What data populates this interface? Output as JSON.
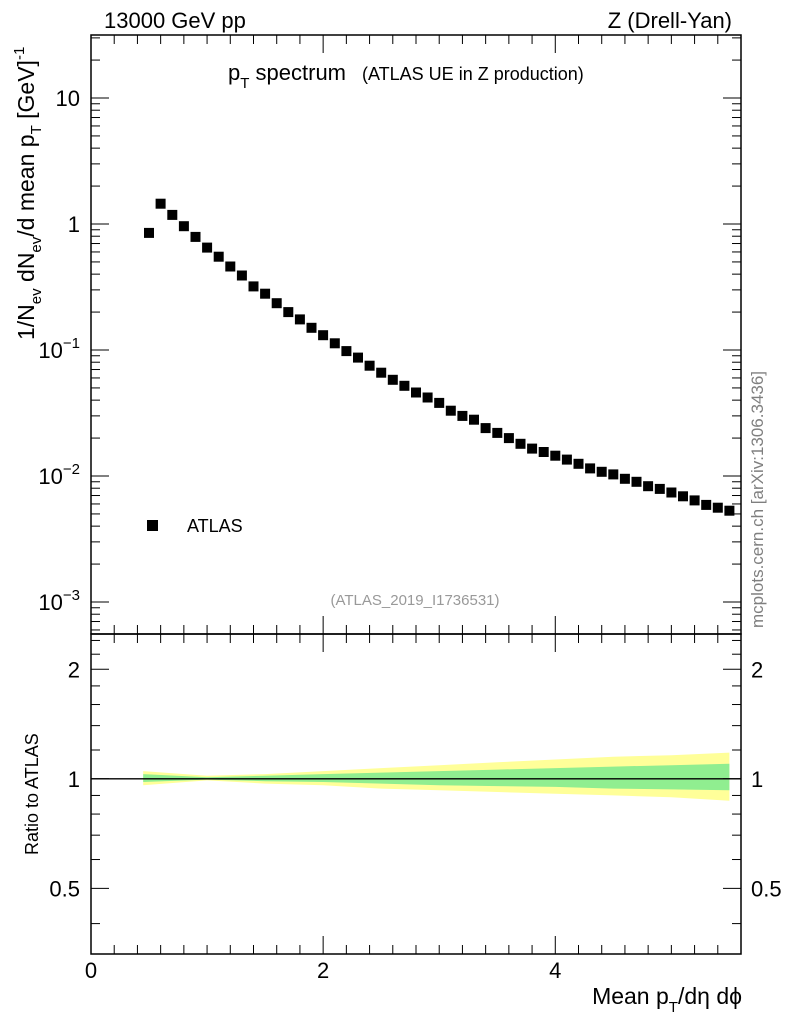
{
  "header": {
    "left": "13000 GeV pp",
    "right": "Z (Drell-Yan)"
  },
  "side_label": "mcplots.cern.ch [arXiv:1306.3436]",
  "chart_data": [
    {
      "panel": "main",
      "type": "scatter",
      "title_main": "p",
      "title_sub": "T",
      "title_rest": " spectrum",
      "title_note": "(ATLAS UE in Z production)",
      "watermark": "(ATLAS_2019_I1736531)",
      "legend": {
        "label": "ATLAS",
        "position": "left"
      },
      "xlim": [
        0,
        5.6
      ],
      "ylim": [
        0.0005,
        30
      ],
      "yscale": "log",
      "ylabel_parts": [
        "1/N",
        "ev",
        " dN",
        "ev",
        "/d mean p",
        "T",
        " [GeV]",
        "-1"
      ],
      "yticks": [
        {
          "value": 10,
          "base": "10",
          "exp": ""
        },
        {
          "value": 1,
          "base": "1",
          "exp": ""
        },
        {
          "value": 0.1,
          "base": "10",
          "exp": "−1"
        },
        {
          "value": 0.01,
          "base": "10",
          "exp": "−2"
        },
        {
          "value": 0.001,
          "base": "10",
          "exp": "−3"
        }
      ],
      "series": [
        {
          "name": "ATLAS",
          "x": [
            0.5,
            0.6,
            0.7,
            0.8,
            0.9,
            1.0,
            1.1,
            1.2,
            1.3,
            1.4,
            1.5,
            1.6,
            1.7,
            1.8,
            1.9,
            2.0,
            2.1,
            2.2,
            2.3,
            2.4,
            2.5,
            2.6,
            2.7,
            2.8,
            2.9,
            3.0,
            3.1,
            3.2,
            3.3,
            3.4,
            3.5,
            3.6,
            3.7,
            3.8,
            3.9,
            4.0,
            4.1,
            4.2,
            4.3,
            4.4,
            4.5,
            4.6,
            4.7,
            4.8,
            4.9,
            5.0,
            5.1,
            5.2,
            5.3,
            5.4,
            5.5
          ],
          "y": [
            0.85,
            1.45,
            1.18,
            0.96,
            0.79,
            0.65,
            0.55,
            0.46,
            0.39,
            0.32,
            0.28,
            0.235,
            0.2,
            0.175,
            0.15,
            0.131,
            0.113,
            0.098,
            0.087,
            0.075,
            0.066,
            0.058,
            0.052,
            0.046,
            0.042,
            0.038,
            0.033,
            0.03,
            0.028,
            0.024,
            0.022,
            0.02,
            0.018,
            0.0165,
            0.0155,
            0.0145,
            0.0135,
            0.0125,
            0.0115,
            0.0108,
            0.0103,
            0.0095,
            0.009,
            0.0083,
            0.0079,
            0.0074,
            0.0069,
            0.0064,
            0.0059,
            0.0056,
            0.0053
          ]
        }
      ]
    },
    {
      "panel": "ratio",
      "type": "area",
      "ylabel": "Ratio to ATLAS",
      "xlabel_parts": [
        "Mean p",
        "T",
        "/dη dϕ"
      ],
      "xlim": [
        0,
        5.6
      ],
      "ylim": [
        0.33,
        2.5
      ],
      "yscale": "log",
      "xticks": [
        {
          "value": 0,
          "label": "0"
        },
        {
          "value": 2,
          "label": "2"
        },
        {
          "value": 4,
          "label": "4"
        }
      ],
      "yticks": [
        {
          "value": 2,
          "label": "2"
        },
        {
          "value": 1,
          "label": "1"
        },
        {
          "value": 0.5,
          "label": "0.5"
        }
      ],
      "reference_line": 1,
      "bands": {
        "x": [
          0.45,
          1.0,
          1.5,
          2.0,
          2.5,
          3.0,
          3.5,
          4.0,
          4.5,
          5.0,
          5.5
        ],
        "yellow_hi": [
          1.05,
          1.02,
          1.03,
          1.05,
          1.07,
          1.09,
          1.11,
          1.13,
          1.15,
          1.16,
          1.18
        ],
        "yellow_lo": [
          0.96,
          0.99,
          0.97,
          0.96,
          0.94,
          0.93,
          0.92,
          0.91,
          0.9,
          0.89,
          0.87
        ],
        "green_hi": [
          1.03,
          1.01,
          1.02,
          1.03,
          1.04,
          1.05,
          1.06,
          1.07,
          1.08,
          1.09,
          1.1
        ],
        "green_lo": [
          0.98,
          0.995,
          0.985,
          0.98,
          0.97,
          0.96,
          0.955,
          0.95,
          0.94,
          0.935,
          0.93
        ],
        "yellow_color": "#ffff99",
        "green_color": "#90ee90"
      }
    }
  ]
}
